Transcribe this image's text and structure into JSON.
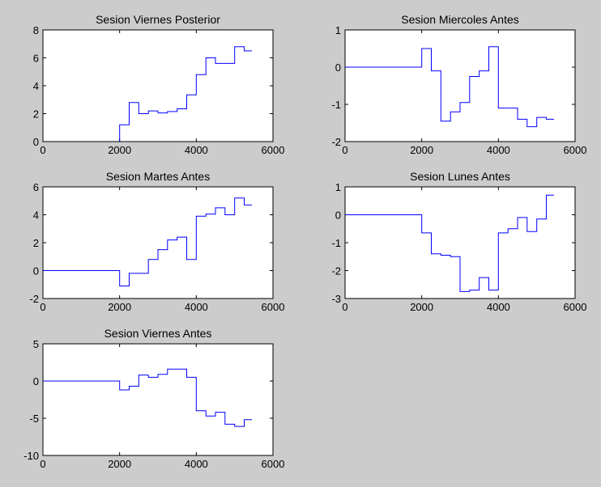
{
  "figure": {
    "background": "#cccccc",
    "axes_background": "#ffffff",
    "line_color": "#0000ff"
  },
  "chart_data": [
    {
      "type": "line",
      "step": true,
      "title": "Sesion Viernes Posterior",
      "xlabel": "",
      "ylabel": "",
      "xlim": [
        0,
        6000
      ],
      "ylim": [
        0,
        8
      ],
      "xticks": [
        0,
        2000,
        4000,
        6000
      ],
      "yticks": [
        0,
        2,
        4,
        6,
        8
      ],
      "grid": false,
      "series": [
        {
          "x": [
            0,
            1950,
            2000,
            2250,
            2500,
            2750,
            3000,
            3250,
            3500,
            3750,
            4000,
            4250,
            4500,
            4750,
            5000,
            5250,
            5450
          ],
          "y": [
            0,
            0,
            1.2,
            2.8,
            2.0,
            2.2,
            2.05,
            2.15,
            2.35,
            3.35,
            4.8,
            6.0,
            5.6,
            5.6,
            6.8,
            6.5,
            6.5
          ]
        }
      ]
    },
    {
      "type": "line",
      "step": true,
      "title": "Sesion Miercoles Antes",
      "xlabel": "",
      "ylabel": "",
      "xlim": [
        0,
        6000
      ],
      "ylim": [
        -2,
        1
      ],
      "xticks": [
        0,
        2000,
        4000,
        6000
      ],
      "yticks": [
        -2,
        -1,
        0,
        1
      ],
      "grid": false,
      "series": [
        {
          "x": [
            0,
            1950,
            2000,
            2250,
            2500,
            2750,
            3000,
            3250,
            3500,
            3750,
            4000,
            4250,
            4500,
            4750,
            5000,
            5250,
            5450
          ],
          "y": [
            0,
            0,
            0.5,
            -0.1,
            -1.45,
            -1.2,
            -0.95,
            -0.25,
            -0.1,
            0.55,
            -1.1,
            -1.1,
            -1.4,
            -1.6,
            -1.35,
            -1.4,
            -1.4
          ]
        }
      ]
    },
    {
      "type": "line",
      "step": true,
      "title": "Sesion Martes Antes",
      "xlabel": "",
      "ylabel": "",
      "xlim": [
        0,
        6000
      ],
      "ylim": [
        -2,
        6
      ],
      "xticks": [
        0,
        2000,
        4000,
        6000
      ],
      "yticks": [
        -2,
        0,
        2,
        4,
        6
      ],
      "grid": false,
      "series": [
        {
          "x": [
            0,
            1950,
            2000,
            2250,
            2500,
            2750,
            3000,
            3250,
            3500,
            3750,
            4000,
            4250,
            4500,
            4750,
            5000,
            5250,
            5450
          ],
          "y": [
            0,
            0,
            -1.1,
            -0.2,
            -0.2,
            0.8,
            1.5,
            2.2,
            2.4,
            0.8,
            3.9,
            4.05,
            4.5,
            4.0,
            5.2,
            4.7,
            4.7
          ]
        }
      ]
    },
    {
      "type": "line",
      "step": true,
      "title": "Sesion Lunes Antes",
      "xlabel": "",
      "ylabel": "",
      "xlim": [
        0,
        6000
      ],
      "ylim": [
        -3,
        1
      ],
      "xticks": [
        0,
        2000,
        4000,
        6000
      ],
      "yticks": [
        -3,
        -2,
        -1,
        0,
        1
      ],
      "grid": false,
      "series": [
        {
          "x": [
            0,
            1950,
            2000,
            2250,
            2500,
            2750,
            3000,
            3250,
            3500,
            3750,
            4000,
            4250,
            4500,
            4750,
            5000,
            5250,
            5450
          ],
          "y": [
            0,
            0,
            -0.65,
            -1.4,
            -1.45,
            -1.5,
            -2.75,
            -2.7,
            -2.25,
            -2.7,
            -0.65,
            -0.5,
            -0.1,
            -0.6,
            -0.15,
            0.7,
            0.7
          ]
        }
      ]
    },
    {
      "type": "line",
      "step": true,
      "title": "Sesion Viernes Antes",
      "xlabel": "",
      "ylabel": "",
      "xlim": [
        0,
        6000
      ],
      "ylim": [
        -10,
        5
      ],
      "xticks": [
        0,
        2000,
        4000,
        6000
      ],
      "yticks": [
        -10,
        -5,
        0,
        5
      ],
      "grid": false,
      "series": [
        {
          "x": [
            0,
            1950,
            2000,
            2250,
            2500,
            2750,
            3000,
            3250,
            3500,
            3750,
            4000,
            4250,
            4500,
            4750,
            5000,
            5250,
            5450
          ],
          "y": [
            0,
            0,
            -1.2,
            -0.7,
            0.8,
            0.5,
            0.9,
            1.6,
            1.6,
            0.5,
            -4.0,
            -4.7,
            -4.2,
            -5.8,
            -6.1,
            -5.2,
            -5.2
          ]
        }
      ]
    }
  ]
}
